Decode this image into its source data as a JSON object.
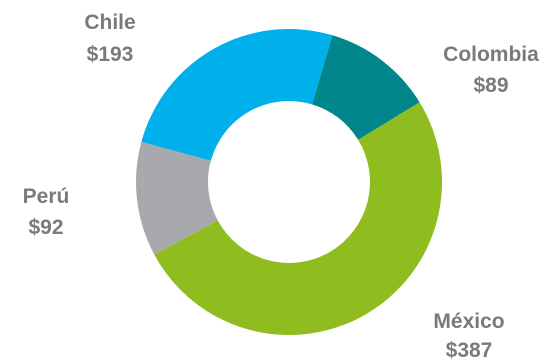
{
  "chart_data": {
    "type": "pie",
    "donut": true,
    "title": "",
    "legend": "none",
    "slices": [
      {
        "label": "Colombia",
        "value": 89,
        "value_label": "$89",
        "color": "#00868b"
      },
      {
        "label": "México",
        "value": 387,
        "value_label": "$387",
        "color": "#8fbc1e"
      },
      {
        "label": "Perú",
        "value": 92,
        "value_label": "$92",
        "color": "#a7a9ac"
      },
      {
        "label": "Chile",
        "value": 193,
        "value_label": "$193",
        "color": "#00b0eb"
      }
    ]
  }
}
